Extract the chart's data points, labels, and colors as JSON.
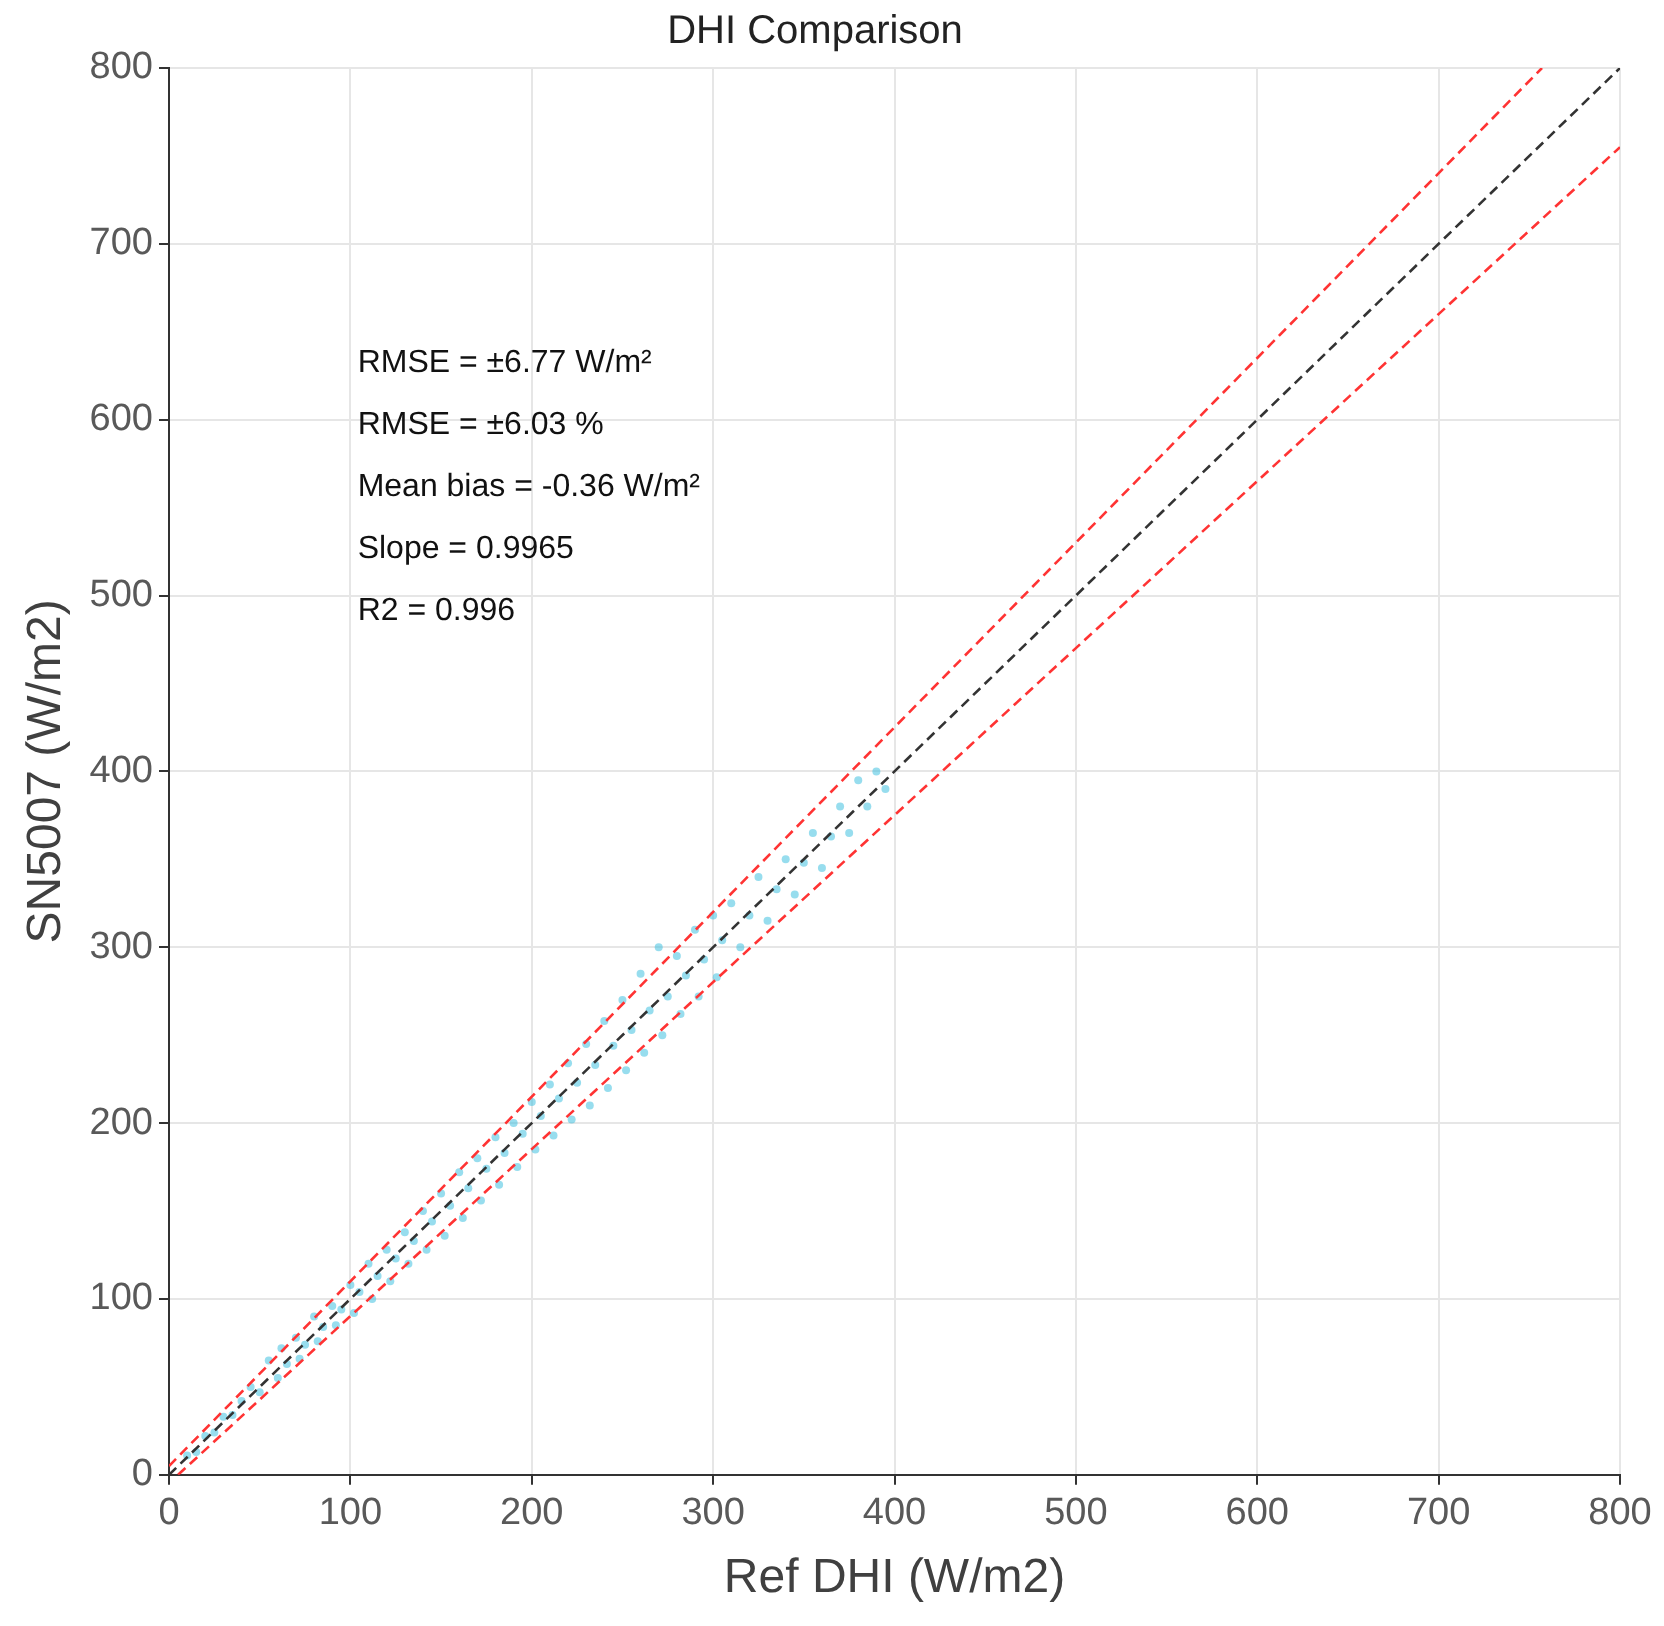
{
  "chart_data": {
    "type": "scatter",
    "title": "DHI Comparison",
    "xlabel": "Ref DHI (W/m2)",
    "ylabel": "SN5007 (W/m2)",
    "xlim": [
      0,
      800
    ],
    "ylim": [
      0,
      800
    ],
    "xticks": [
      0,
      100,
      200,
      300,
      400,
      500,
      600,
      700,
      800
    ],
    "yticks": [
      0,
      100,
      200,
      300,
      400,
      500,
      600,
      700,
      800
    ],
    "grid": true,
    "legend": false,
    "marker": "circle",
    "annotations": [
      "RMSE = ±6.77 W/m²",
      "RMSE = ±6.03 %",
      "Mean bias = -0.36 W/m²",
      "Slope = 0.9965",
      "R2 = 0.996"
    ],
    "series": [
      {
        "color": "#3cbfdf",
        "x": [
          10,
          15,
          20,
          25,
          30,
          35,
          40,
          45,
          50,
          55,
          60,
          62,
          65,
          70,
          72,
          75,
          80,
          82,
          85,
          90,
          92,
          95,
          100,
          102,
          105,
          110,
          112,
          115,
          120,
          122,
          125,
          130,
          132,
          135,
          140,
          142,
          145,
          150,
          152,
          155,
          160,
          162,
          165,
          170,
          172,
          175,
          180,
          182,
          185,
          190,
          192,
          195,
          200,
          202,
          205,
          210,
          212,
          215,
          220,
          222,
          225,
          230,
          232,
          235,
          240,
          242,
          245,
          250,
          252,
          255,
          260,
          262,
          265,
          270,
          272,
          275,
          280,
          282,
          285,
          290,
          292,
          295,
          300,
          302,
          305,
          310,
          315,
          320,
          325,
          330,
          335,
          340,
          345,
          350,
          355,
          360,
          365,
          370,
          375,
          380,
          385,
          390,
          395
        ],
        "values": [
          11,
          13,
          22,
          24,
          33,
          34,
          42,
          50,
          47,
          65,
          55,
          72,
          63,
          78,
          66,
          74,
          90,
          76,
          84,
          96,
          85,
          94,
          108,
          92,
          104,
          120,
          100,
          113,
          128,
          110,
          123,
          138,
          120,
          133,
          150,
          128,
          144,
          160,
          136,
          153,
          172,
          146,
          163,
          180,
          156,
          174,
          192,
          165,
          183,
          200,
          175,
          194,
          212,
          185,
          204,
          222,
          193,
          214,
          234,
          202,
          223,
          245,
          210,
          233,
          258,
          220,
          244,
          270,
          230,
          253,
          285,
          240,
          264,
          300,
          250,
          272,
          295,
          262,
          284,
          310,
          272,
          293,
          318,
          283,
          304,
          325,
          300,
          318,
          340,
          315,
          333,
          350,
          330,
          348,
          365,
          345,
          363,
          380,
          365,
          395,
          380,
          400,
          390
        ]
      },
      {
        "type": "line",
        "color": "#333333",
        "marker": "none",
        "line_style": "dashed",
        "x": [
          0,
          800
        ],
        "values": [
          0,
          800
        ]
      },
      {
        "type": "line",
        "color": "#ff3333",
        "marker": "none",
        "line_style": "dashed",
        "x": [
          0,
          757
        ],
        "values": [
          5,
          800
        ]
      },
      {
        "type": "line",
        "color": "#ff3333",
        "marker": "none",
        "line_style": "dashed",
        "x": [
          5,
          800
        ],
        "values": [
          0,
          755
        ]
      }
    ]
  }
}
